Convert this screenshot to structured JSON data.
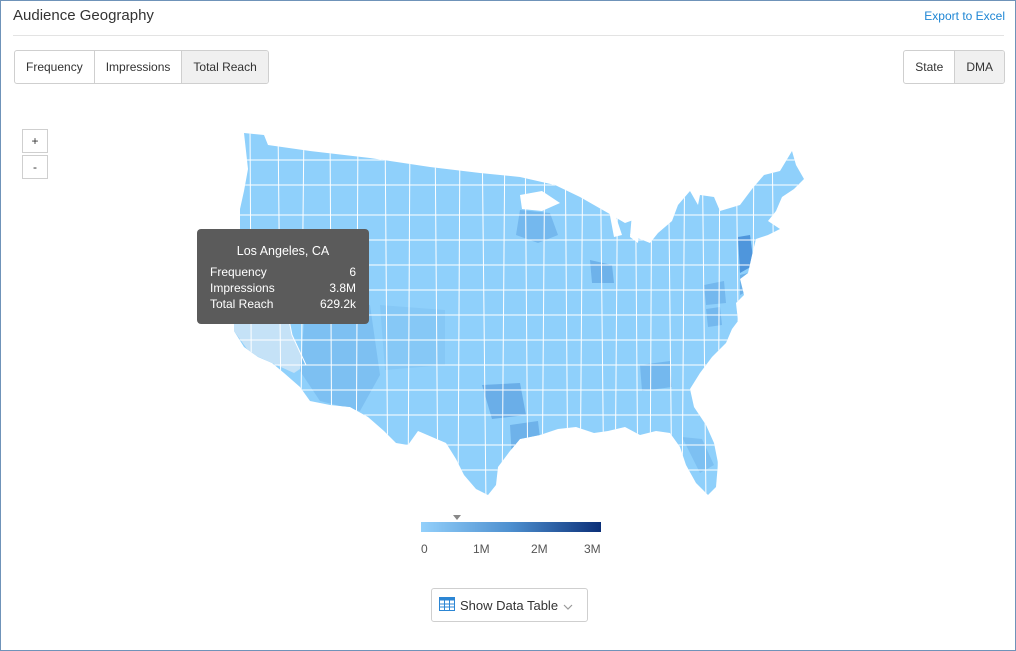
{
  "header": {
    "title": "Audience Geography",
    "export_label": "Export to Excel"
  },
  "metric_tabs": [
    {
      "label": "Frequency",
      "active": false
    },
    {
      "label": "Impressions",
      "active": false
    },
    {
      "label": "Total Reach",
      "active": true
    }
  ],
  "geo_tabs": [
    {
      "label": "State",
      "active": false
    },
    {
      "label": "DMA",
      "active": true
    }
  ],
  "zoom": {
    "in_label": "+",
    "out_label": "-"
  },
  "tooltip": {
    "title": "Los Angeles, CA",
    "rows": [
      {
        "label": "Frequency",
        "value": "6"
      },
      {
        "label": "Impressions",
        "value": "3.8M"
      },
      {
        "label": "Total Reach",
        "value": "629.2k"
      }
    ]
  },
  "legend": {
    "ticks": [
      "0",
      "1M",
      "2M",
      "3M"
    ],
    "min_color": "#93d0fb",
    "max_color": "#0b2f78",
    "marker_value": 629200
  },
  "map": {
    "region": "United States DMA regions",
    "base_color": "#8fd0fb",
    "highlight_color": "#c5e2f7",
    "mid_color": "#6eb2ea",
    "dark_color": "#4f96dc"
  },
  "data_table_button": {
    "label": "Show Data Table"
  }
}
